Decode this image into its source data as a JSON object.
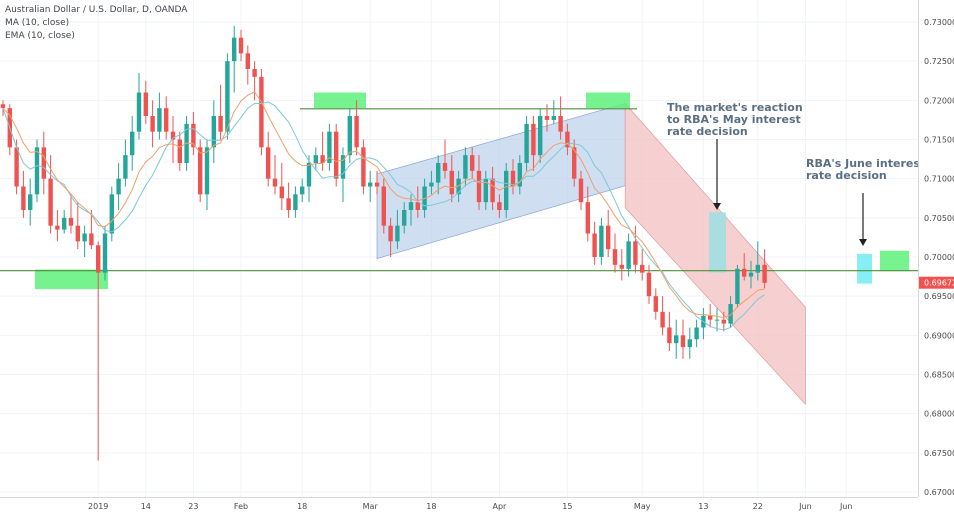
{
  "legend": {
    "title": "Australian Dollar / U.S. Dollar, D, OANDA",
    "ma": "MA (10, close)",
    "ema": "EMA (10, close)"
  },
  "colors": {
    "up": "#26a69a",
    "down": "#ef5350",
    "ma": "#7dc8d8",
    "ema": "#f0a06a",
    "support_line": "#4e8f3a",
    "highlight": "#5ef07a",
    "channel_up": "#b7cdeb",
    "channel_down": "#f3c0c0",
    "price_badge": "#ef5350",
    "grid": "#f0f3fa"
  },
  "chart_data": {
    "type": "candlestick",
    "symbol": "Australian Dollar / U.S. Dollar, D, OANDA",
    "ylim": [
      0.6695,
      0.7315
    ],
    "y_ticks": [
      "0.73000",
      "0.72500",
      "0.72000",
      "0.71500",
      "0.71000",
      "0.70500",
      "0.70000",
      "0.69500",
      "0.69000",
      "0.68500",
      "0.68000",
      "0.67500",
      "0.67000"
    ],
    "x_ticks": [
      {
        "i": 14,
        "label": "2019"
      },
      {
        "i": 21,
        "label": "14"
      },
      {
        "i": 28,
        "label": "23"
      },
      {
        "i": 35,
        "label": "Feb"
      },
      {
        "i": 44,
        "label": "18"
      },
      {
        "i": 54,
        "label": "Mar"
      },
      {
        "i": 63,
        "label": "18"
      },
      {
        "i": 73,
        "label": "Apr"
      },
      {
        "i": 83,
        "label": "15"
      },
      {
        "i": 94,
        "label": "May"
      },
      {
        "i": 103,
        "label": "13"
      },
      {
        "i": 111,
        "label": "22"
      },
      {
        "i": 118,
        "label": "Jun"
      },
      {
        "i": 124,
        "label": "Jun"
      }
    ],
    "last_price": "0.69672",
    "ohlc": [
      [
        0.7195,
        0.72,
        0.718,
        0.719
      ],
      [
        0.719,
        0.7195,
        0.713,
        0.714
      ],
      [
        0.714,
        0.715,
        0.708,
        0.709
      ],
      [
        0.709,
        0.711,
        0.705,
        0.706
      ],
      [
        0.706,
        0.71,
        0.704,
        0.708
      ],
      [
        0.708,
        0.715,
        0.707,
        0.714
      ],
      [
        0.714,
        0.716,
        0.708,
        0.71
      ],
      [
        0.71,
        0.713,
        0.703,
        0.704
      ],
      [
        0.704,
        0.706,
        0.702,
        0.7035
      ],
      [
        0.7035,
        0.706,
        0.703,
        0.705
      ],
      [
        0.705,
        0.708,
        0.703,
        0.704
      ],
      [
        0.704,
        0.707,
        0.701,
        0.702
      ],
      [
        0.702,
        0.704,
        0.7,
        0.703
      ],
      [
        0.703,
        0.706,
        0.701,
        0.7015
      ],
      [
        0.7015,
        0.702,
        0.674,
        0.698
      ],
      [
        0.698,
        0.704,
        0.697,
        0.703
      ],
      [
        0.703,
        0.709,
        0.702,
        0.708
      ],
      [
        0.708,
        0.712,
        0.706,
        0.71
      ],
      [
        0.71,
        0.715,
        0.709,
        0.713
      ],
      [
        0.713,
        0.718,
        0.711,
        0.716
      ],
      [
        0.716,
        0.7235,
        0.715,
        0.721
      ],
      [
        0.721,
        0.7225,
        0.717,
        0.718
      ],
      [
        0.718,
        0.72,
        0.714,
        0.716
      ],
      [
        0.716,
        0.721,
        0.715,
        0.719
      ],
      [
        0.719,
        0.7205,
        0.715,
        0.716
      ],
      [
        0.716,
        0.718,
        0.712,
        0.715
      ],
      [
        0.715,
        0.716,
        0.711,
        0.712
      ],
      [
        0.712,
        0.718,
        0.711,
        0.717
      ],
      [
        0.717,
        0.7185,
        0.713,
        0.714
      ],
      [
        0.714,
        0.715,
        0.707,
        0.708
      ],
      [
        0.708,
        0.715,
        0.706,
        0.714
      ],
      [
        0.714,
        0.72,
        0.712,
        0.718
      ],
      [
        0.718,
        0.722,
        0.715,
        0.716
      ],
      [
        0.716,
        0.726,
        0.715,
        0.725
      ],
      [
        0.725,
        0.7295,
        0.721,
        0.728
      ],
      [
        0.728,
        0.729,
        0.725,
        0.726
      ],
      [
        0.726,
        0.727,
        0.722,
        0.724
      ],
      [
        0.724,
        0.725,
        0.72,
        0.723
      ],
      [
        0.723,
        0.724,
        0.713,
        0.714
      ],
      [
        0.714,
        0.716,
        0.709,
        0.71
      ],
      [
        0.71,
        0.713,
        0.708,
        0.709
      ],
      [
        0.709,
        0.712,
        0.706,
        0.7075
      ],
      [
        0.7075,
        0.7095,
        0.705,
        0.706
      ],
      [
        0.706,
        0.709,
        0.705,
        0.708
      ],
      [
        0.708,
        0.71,
        0.707,
        0.709
      ],
      [
        0.709,
        0.713,
        0.707,
        0.712
      ],
      [
        0.712,
        0.714,
        0.711,
        0.713
      ],
      [
        0.713,
        0.716,
        0.711,
        0.712
      ],
      [
        0.712,
        0.717,
        0.711,
        0.716
      ],
      [
        0.716,
        0.717,
        0.709,
        0.71
      ],
      [
        0.71,
        0.714,
        0.707,
        0.713
      ],
      [
        0.713,
        0.719,
        0.712,
        0.718
      ],
      [
        0.718,
        0.72,
        0.713,
        0.714
      ],
      [
        0.714,
        0.715,
        0.708,
        0.709
      ],
      [
        0.709,
        0.711,
        0.707,
        0.7095
      ],
      [
        0.7095,
        0.711,
        0.708,
        0.709
      ],
      [
        0.709,
        0.71,
        0.703,
        0.704
      ],
      [
        0.704,
        0.705,
        0.7,
        0.702
      ],
      [
        0.702,
        0.706,
        0.701,
        0.704
      ],
      [
        0.704,
        0.707,
        0.703,
        0.706
      ],
      [
        0.706,
        0.708,
        0.704,
        0.707
      ],
      [
        0.707,
        0.709,
        0.705,
        0.706
      ],
      [
        0.706,
        0.71,
        0.705,
        0.709
      ],
      [
        0.709,
        0.711,
        0.708,
        0.7095
      ],
      [
        0.7095,
        0.713,
        0.708,
        0.712
      ],
      [
        0.712,
        0.715,
        0.71,
        0.711
      ],
      [
        0.711,
        0.713,
        0.707,
        0.708
      ],
      [
        0.708,
        0.711,
        0.707,
        0.71
      ],
      [
        0.71,
        0.714,
        0.709,
        0.713
      ],
      [
        0.713,
        0.714,
        0.71,
        0.711
      ],
      [
        0.711,
        0.713,
        0.706,
        0.707
      ],
      [
        0.707,
        0.711,
        0.706,
        0.71
      ],
      [
        0.71,
        0.7115,
        0.706,
        0.707
      ],
      [
        0.707,
        0.708,
        0.705,
        0.706
      ],
      [
        0.706,
        0.712,
        0.705,
        0.711
      ],
      [
        0.711,
        0.7125,
        0.708,
        0.709
      ],
      [
        0.709,
        0.713,
        0.708,
        0.712
      ],
      [
        0.712,
        0.718,
        0.711,
        0.717
      ],
      [
        0.717,
        0.718,
        0.711,
        0.713
      ],
      [
        0.713,
        0.719,
        0.712,
        0.718
      ],
      [
        0.718,
        0.7195,
        0.716,
        0.7175
      ],
      [
        0.7175,
        0.72,
        0.717,
        0.718
      ],
      [
        0.718,
        0.7205,
        0.715,
        0.716
      ],
      [
        0.716,
        0.717,
        0.713,
        0.714
      ],
      [
        0.714,
        0.715,
        0.709,
        0.71
      ],
      [
        0.71,
        0.711,
        0.706,
        0.707
      ],
      [
        0.707,
        0.709,
        0.702,
        0.703
      ],
      [
        0.703,
        0.7045,
        0.699,
        0.7
      ],
      [
        0.7,
        0.705,
        0.699,
        0.704
      ],
      [
        0.704,
        0.706,
        0.7,
        0.701
      ],
      [
        0.701,
        0.703,
        0.698,
        0.699
      ],
      [
        0.699,
        0.701,
        0.697,
        0.6985
      ],
      [
        0.6985,
        0.703,
        0.6975,
        0.702
      ],
      [
        0.702,
        0.704,
        0.698,
        0.699
      ],
      [
        0.699,
        0.701,
        0.697,
        0.698
      ],
      [
        0.698,
        0.699,
        0.694,
        0.695
      ],
      [
        0.695,
        0.696,
        0.692,
        0.693
      ],
      [
        0.693,
        0.695,
        0.69,
        0.691
      ],
      [
        0.691,
        0.693,
        0.688,
        0.689
      ],
      [
        0.689,
        0.692,
        0.687,
        0.69
      ],
      [
        0.69,
        0.692,
        0.687,
        0.6885
      ],
      [
        0.6885,
        0.691,
        0.687,
        0.6895
      ],
      [
        0.6895,
        0.692,
        0.6885,
        0.691
      ],
      [
        0.691,
        0.6935,
        0.6895,
        0.6925
      ],
      [
        0.6925,
        0.694,
        0.691,
        0.692
      ],
      [
        0.692,
        0.6935,
        0.6905,
        0.692
      ],
      [
        0.692,
        0.693,
        0.6905,
        0.6915
      ],
      [
        0.6915,
        0.695,
        0.691,
        0.694
      ],
      [
        0.694,
        0.699,
        0.6935,
        0.6985
      ],
      [
        0.6985,
        0.7005,
        0.697,
        0.6975
      ],
      [
        0.6975,
        0.6995,
        0.696,
        0.698
      ],
      [
        0.698,
        0.702,
        0.697,
        0.699
      ],
      [
        0.699,
        0.701,
        0.696,
        0.6967
      ]
    ],
    "support_level": 0.69825,
    "resistance_level": 0.71892,
    "annotations": [
      "The market's reaction to RBA's May interest rate decision",
      "RBA's June interest rate decision"
    ]
  },
  "annotations": {
    "may_lines": [
      "The market's reaction",
      "to RBA's May interest",
      "rate decision"
    ],
    "june_lines": [
      "RBA's June interest",
      "rate decision"
    ]
  }
}
